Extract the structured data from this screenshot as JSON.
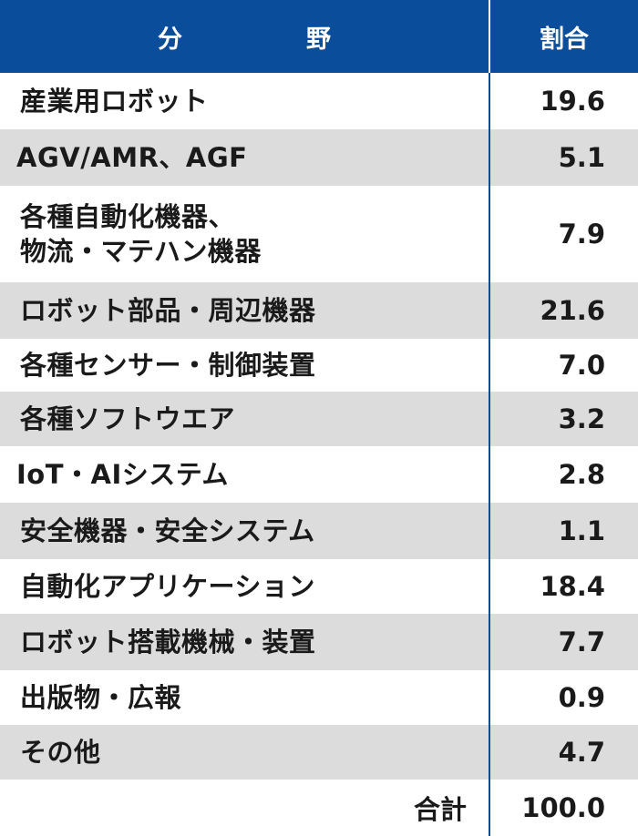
{
  "header": {
    "field_char1": "分",
    "field_char2": "野",
    "pct_label": "割合"
  },
  "rows": [
    {
      "field": "産業用ロボット",
      "pct": "19.6"
    },
    {
      "field": "AGV/AMR、AGF",
      "pct": "5.1"
    },
    {
      "field_line1": "各種自動化機器、",
      "field_line2": "物流・マテハン機器",
      "pct": "7.9"
    },
    {
      "field": "ロボット部品・周辺機器",
      "pct": "21.6"
    },
    {
      "field": "各種センサー・制御装置",
      "pct": "7.0"
    },
    {
      "field": "各種ソフトウエア",
      "pct": "3.2"
    },
    {
      "field": "IoT・AIシステム",
      "pct": "2.8"
    },
    {
      "field": "安全機器・安全システム",
      "pct": "1.1"
    },
    {
      "field": "自動化アプリケーション",
      "pct": "18.4"
    },
    {
      "field": "ロボット搭載機械・装置",
      "pct": "7.7"
    },
    {
      "field": "出版物・広報",
      "pct": "0.9"
    },
    {
      "field": "その他",
      "pct": "4.7"
    }
  ],
  "total": {
    "label": "合計",
    "pct": "100.0"
  },
  "colors": {
    "header_bg": "#0a4d9a",
    "stripe": "#dcdcdc",
    "text": "#1a1a1a"
  }
}
